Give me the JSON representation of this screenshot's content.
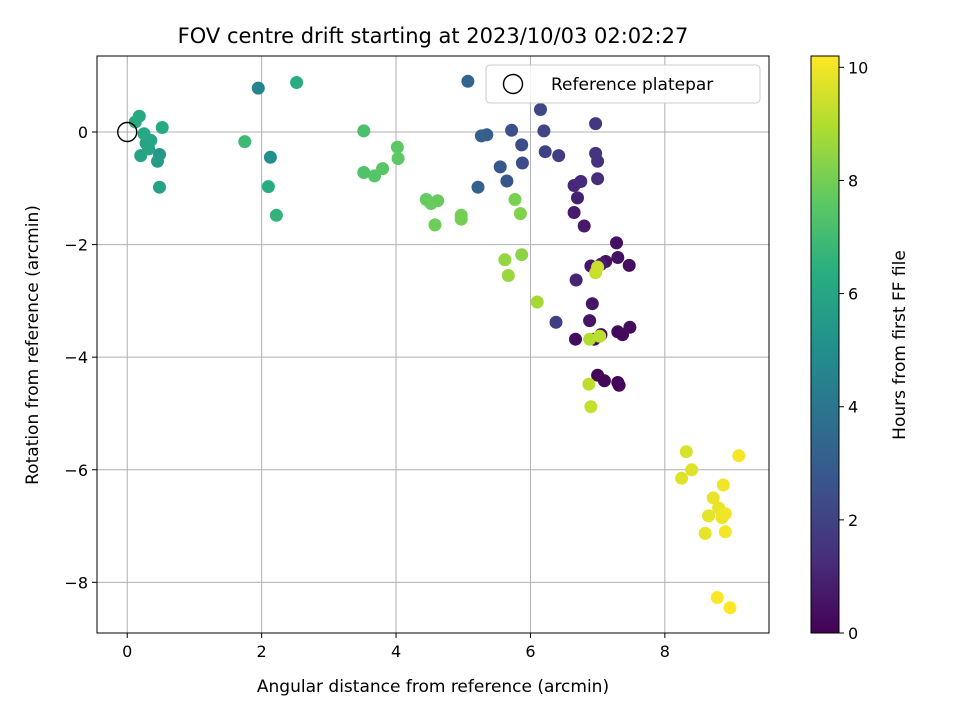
{
  "chart_data": {
    "type": "scatter",
    "title": "FOV centre drift starting at 2023/10/03 02:02:27",
    "xlabel": "Angular distance from reference (arcmin)",
    "ylabel": "Rotation from reference (arcmin)",
    "xlim": [
      -0.45,
      9.55
    ],
    "ylim": [
      -8.9,
      1.35
    ],
    "xticks": [
      0,
      2,
      4,
      6,
      8
    ],
    "yticks": [
      0,
      -2,
      -4,
      -6,
      -8
    ],
    "xtick_labels": [
      "0",
      "2",
      "4",
      "6",
      "8"
    ],
    "ytick_labels": [
      "0",
      "−2",
      "−4",
      "−6",
      "−8"
    ],
    "grid": true,
    "legend": {
      "placement": "top-right",
      "entries": [
        "Reference platepar"
      ]
    },
    "reference_point": {
      "x": 0,
      "y": 0
    },
    "colorbar": {
      "label": "Hours from first FF file",
      "colormap": "viridis",
      "range": [
        0,
        10.2
      ],
      "ticks": [
        0,
        2,
        4,
        6,
        8,
        10
      ],
      "tick_labels": [
        "0",
        "2",
        "4",
        "6",
        "8",
        "10"
      ]
    },
    "points": [
      {
        "x": 7.0,
        "y": -4.32,
        "t": 0.1
      },
      {
        "x": 7.3,
        "y": -4.45,
        "t": 0.1
      },
      {
        "x": 7.32,
        "y": -4.5,
        "t": 0.12
      },
      {
        "x": 7.1,
        "y": -4.42,
        "t": 0.15
      },
      {
        "x": 7.3,
        "y": -3.55,
        "t": 0.2
      },
      {
        "x": 7.37,
        "y": -3.6,
        "t": 0.22
      },
      {
        "x": 7.48,
        "y": -3.47,
        "t": 0.25
      },
      {
        "x": 7.05,
        "y": -3.6,
        "t": 0.3
      },
      {
        "x": 6.67,
        "y": -3.68,
        "t": 0.3
      },
      {
        "x": 6.95,
        "y": -3.68,
        "t": 0.35
      },
      {
        "x": 7.47,
        "y": -2.37,
        "t": 0.4
      },
      {
        "x": 7.28,
        "y": -1.97,
        "t": 0.42
      },
      {
        "x": 7.3,
        "y": -2.23,
        "t": 0.45
      },
      {
        "x": 7.12,
        "y": -2.3,
        "t": 0.5
      },
      {
        "x": 6.88,
        "y": -3.35,
        "t": 0.55
      },
      {
        "x": 6.92,
        "y": -3.05,
        "t": 0.6
      },
      {
        "x": 6.9,
        "y": -2.38,
        "t": 0.65
      },
      {
        "x": 6.8,
        "y": -1.67,
        "t": 0.7
      },
      {
        "x": 6.65,
        "y": -1.43,
        "t": 0.75
      },
      {
        "x": 7.05,
        "y": -2.35,
        "t": 0.8
      },
      {
        "x": 6.7,
        "y": -1.17,
        "t": 0.9
      },
      {
        "x": 6.68,
        "y": -2.63,
        "t": 1.0
      },
      {
        "x": 6.65,
        "y": -0.95,
        "t": 1.1
      },
      {
        "x": 6.75,
        "y": -0.88,
        "t": 1.2
      },
      {
        "x": 7.0,
        "y": -0.83,
        "t": 1.3
      },
      {
        "x": 7.0,
        "y": -0.52,
        "t": 1.4
      },
      {
        "x": 6.97,
        "y": -0.38,
        "t": 1.5
      },
      {
        "x": 6.97,
        "y": 0.15,
        "t": 1.6
      },
      {
        "x": 6.42,
        "y": -0.42,
        "t": 1.8
      },
      {
        "x": 6.38,
        "y": -3.38,
        "t": 1.9
      },
      {
        "x": 6.22,
        "y": -0.35,
        "t": 2.0
      },
      {
        "x": 6.2,
        "y": 0.02,
        "t": 2.1
      },
      {
        "x": 6.15,
        "y": 0.4,
        "t": 2.2
      },
      {
        "x": 5.88,
        "y": -0.55,
        "t": 2.3
      },
      {
        "x": 5.87,
        "y": -0.23,
        "t": 2.4
      },
      {
        "x": 5.72,
        "y": 0.03,
        "t": 2.5
      },
      {
        "x": 5.65,
        "y": -0.87,
        "t": 2.7
      },
      {
        "x": 5.55,
        "y": -0.62,
        "t": 2.8
      },
      {
        "x": 5.35,
        "y": -0.05,
        "t": 3.0
      },
      {
        "x": 5.27,
        "y": -0.07,
        "t": 3.1
      },
      {
        "x": 5.22,
        "y": -0.98,
        "t": 3.2
      },
      {
        "x": 5.07,
        "y": 0.9,
        "t": 3.3
      },
      {
        "x": 1.95,
        "y": 0.78,
        "t": 4.6
      },
      {
        "x": 2.13,
        "y": -0.45,
        "t": 5.0
      },
      {
        "x": 0.48,
        "y": -0.4,
        "t": 5.4
      },
      {
        "x": 0.45,
        "y": -0.52,
        "t": 5.6
      },
      {
        "x": 0.48,
        "y": -0.98,
        "t": 5.8
      },
      {
        "x": 0.28,
        "y": -0.2,
        "t": 5.8
      },
      {
        "x": 0.2,
        "y": -0.42,
        "t": 5.9
      },
      {
        "x": 0.35,
        "y": -0.15,
        "t": 6.0
      },
      {
        "x": 0.32,
        "y": -0.3,
        "t": 6.0
      },
      {
        "x": 0.25,
        "y": -0.03,
        "t": 6.1
      },
      {
        "x": 0.18,
        "y": 0.28,
        "t": 6.1
      },
      {
        "x": 0.12,
        "y": 0.18,
        "t": 6.2
      },
      {
        "x": 0.52,
        "y": 0.08,
        "t": 6.2
      },
      {
        "x": 2.52,
        "y": 0.88,
        "t": 6.3
      },
      {
        "x": 2.1,
        "y": -0.97,
        "t": 6.3
      },
      {
        "x": 2.22,
        "y": -1.48,
        "t": 6.6
      },
      {
        "x": 1.75,
        "y": -0.17,
        "t": 6.9
      },
      {
        "x": 3.52,
        "y": 0.02,
        "t": 7.2
      },
      {
        "x": 3.52,
        "y": -0.72,
        "t": 7.3
      },
      {
        "x": 3.68,
        "y": -0.78,
        "t": 7.4
      },
      {
        "x": 3.8,
        "y": -0.65,
        "t": 7.5
      },
      {
        "x": 4.02,
        "y": -0.27,
        "t": 7.6
      },
      {
        "x": 4.03,
        "y": -0.47,
        "t": 7.6
      },
      {
        "x": 4.45,
        "y": -1.2,
        "t": 7.7
      },
      {
        "x": 4.52,
        "y": -1.27,
        "t": 7.8
      },
      {
        "x": 4.62,
        "y": -1.22,
        "t": 7.8
      },
      {
        "x": 4.58,
        "y": -1.65,
        "t": 7.9
      },
      {
        "x": 4.97,
        "y": -1.48,
        "t": 8.0
      },
      {
        "x": 4.97,
        "y": -1.55,
        "t": 8.0
      },
      {
        "x": 5.77,
        "y": -1.2,
        "t": 8.1
      },
      {
        "x": 5.85,
        "y": -1.45,
        "t": 8.2
      },
      {
        "x": 5.87,
        "y": -2.18,
        "t": 8.4
      },
      {
        "x": 5.62,
        "y": -2.27,
        "t": 8.5
      },
      {
        "x": 5.67,
        "y": -2.55,
        "t": 8.6
      },
      {
        "x": 6.1,
        "y": -3.02,
        "t": 8.8
      },
      {
        "x": 6.88,
        "y": -3.68,
        "t": 9.0
      },
      {
        "x": 7.03,
        "y": -3.63,
        "t": 9.1
      },
      {
        "x": 6.87,
        "y": -4.48,
        "t": 9.2
      },
      {
        "x": 6.9,
        "y": -4.88,
        "t": 9.3
      },
      {
        "x": 6.97,
        "y": -2.5,
        "t": 9.3
      },
      {
        "x": 7.0,
        "y": -2.4,
        "t": 9.4
      },
      {
        "x": 8.32,
        "y": -5.68,
        "t": 9.6
      },
      {
        "x": 8.25,
        "y": -6.15,
        "t": 9.7
      },
      {
        "x": 8.4,
        "y": -6.0,
        "t": 9.7
      },
      {
        "x": 8.65,
        "y": -6.82,
        "t": 9.8
      },
      {
        "x": 8.6,
        "y": -7.13,
        "t": 9.8
      },
      {
        "x": 8.72,
        "y": -6.5,
        "t": 9.9
      },
      {
        "x": 8.8,
        "y": -6.68,
        "t": 9.9
      },
      {
        "x": 8.85,
        "y": -6.85,
        "t": 9.95
      },
      {
        "x": 8.9,
        "y": -6.78,
        "t": 10.0
      },
      {
        "x": 8.87,
        "y": -6.27,
        "t": 10.0
      },
      {
        "x": 8.9,
        "y": -7.1,
        "t": 10.05
      },
      {
        "x": 9.1,
        "y": -5.75,
        "t": 10.1
      },
      {
        "x": 8.78,
        "y": -8.27,
        "t": 10.15
      },
      {
        "x": 8.97,
        "y": -8.45,
        "t": 10.2
      }
    ]
  }
}
